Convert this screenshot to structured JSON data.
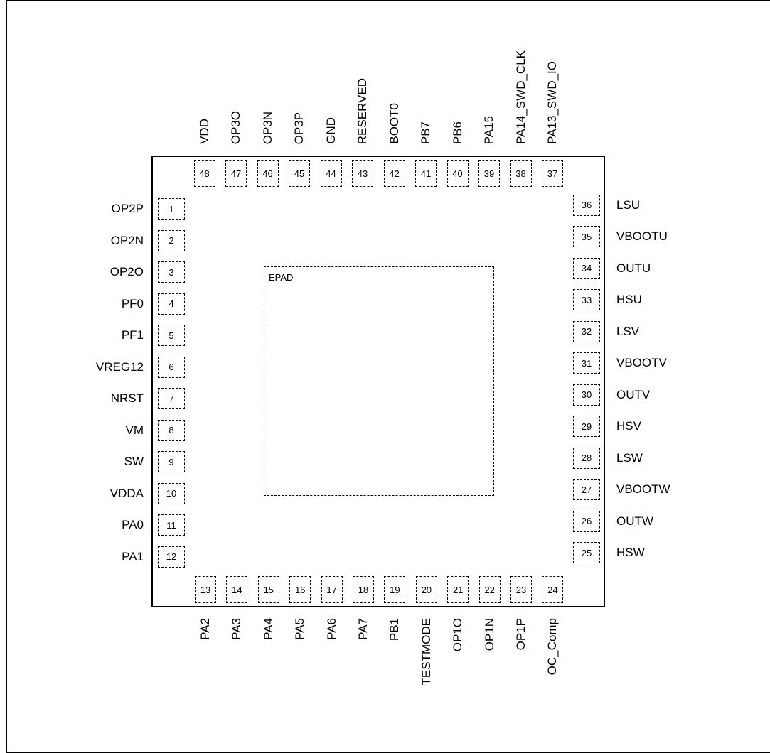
{
  "package": {
    "epad_label": "EPAD",
    "left_pins": [
      {
        "num": "1",
        "name": "OP2P"
      },
      {
        "num": "2",
        "name": "OP2N"
      },
      {
        "num": "3",
        "name": "OP2O"
      },
      {
        "num": "4",
        "name": "PF0"
      },
      {
        "num": "5",
        "name": "PF1"
      },
      {
        "num": "6",
        "name": "VREG12"
      },
      {
        "num": "7",
        "name": "NRST"
      },
      {
        "num": "8",
        "name": "VM"
      },
      {
        "num": "9",
        "name": "SW"
      },
      {
        "num": "10",
        "name": "VDDA"
      },
      {
        "num": "11",
        "name": "PA0"
      },
      {
        "num": "12",
        "name": "PA1"
      }
    ],
    "bottom_pins": [
      {
        "num": "13",
        "name": "PA2"
      },
      {
        "num": "14",
        "name": "PA3"
      },
      {
        "num": "15",
        "name": "PA4"
      },
      {
        "num": "16",
        "name": "PA5"
      },
      {
        "num": "17",
        "name": "PA6"
      },
      {
        "num": "18",
        "name": "PA7"
      },
      {
        "num": "19",
        "name": "PB1"
      },
      {
        "num": "20",
        "name": "TESTMODE"
      },
      {
        "num": "21",
        "name": "OP1O"
      },
      {
        "num": "22",
        "name": "OP1N"
      },
      {
        "num": "23",
        "name": "OP1P"
      },
      {
        "num": "24",
        "name": "OC_Comp"
      }
    ],
    "right_pins": [
      {
        "num": "25",
        "name": "HSW"
      },
      {
        "num": "26",
        "name": "OUTW"
      },
      {
        "num": "27",
        "name": "VBOOTW"
      },
      {
        "num": "28",
        "name": "LSW"
      },
      {
        "num": "29",
        "name": "HSV"
      },
      {
        "num": "30",
        "name": "OUTV"
      },
      {
        "num": "31",
        "name": "VBOOTV"
      },
      {
        "num": "32",
        "name": "LSV"
      },
      {
        "num": "33",
        "name": "HSU"
      },
      {
        "num": "34",
        "name": "OUTU"
      },
      {
        "num": "35",
        "name": "VBOOTU"
      },
      {
        "num": "36",
        "name": "LSU"
      }
    ],
    "top_pins": [
      {
        "num": "37",
        "name": "PA13_SWD_IO"
      },
      {
        "num": "38",
        "name": "PA14_SWD_CLK"
      },
      {
        "num": "39",
        "name": "PA15"
      },
      {
        "num": "40",
        "name": "PB6"
      },
      {
        "num": "41",
        "name": "PB7"
      },
      {
        "num": "42",
        "name": "BOOT0"
      },
      {
        "num": "43",
        "name": "RESERVED"
      },
      {
        "num": "44",
        "name": "GND"
      },
      {
        "num": "45",
        "name": "OP3P"
      },
      {
        "num": "46",
        "name": "OP3N"
      },
      {
        "num": "47",
        "name": "OP3O"
      },
      {
        "num": "48",
        "name": "VDD"
      }
    ]
  }
}
